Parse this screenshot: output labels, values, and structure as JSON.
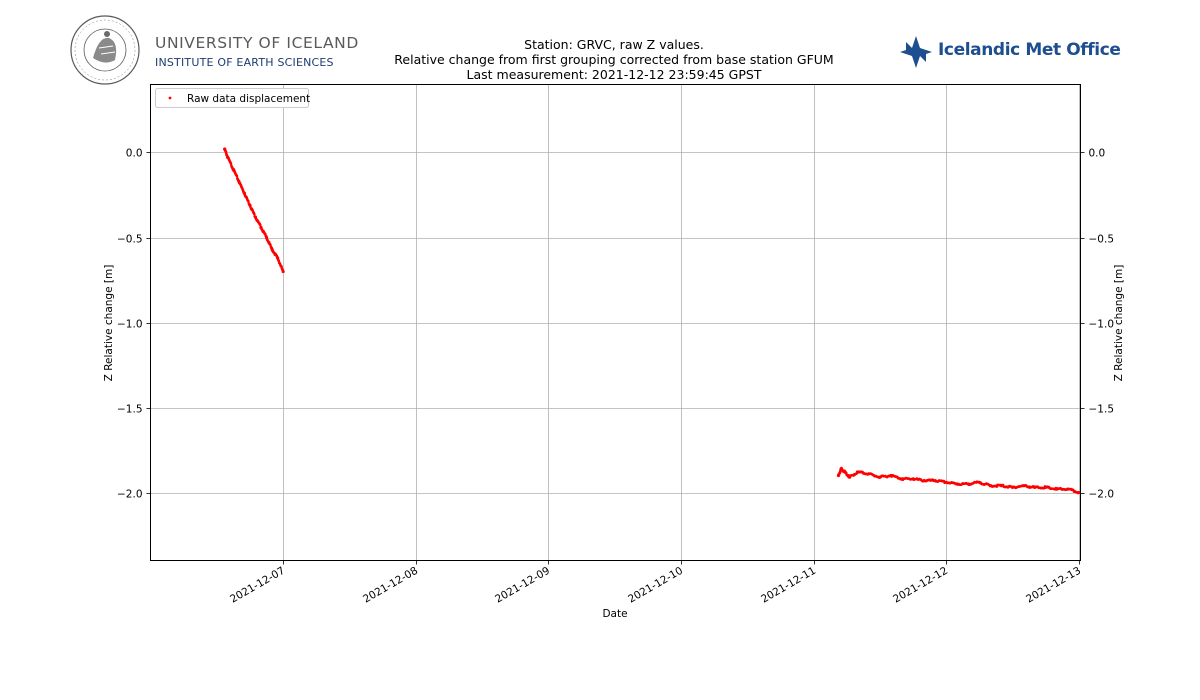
{
  "header": {
    "university_name": "UNIVERSITY OF ICELAND",
    "institute_name": "INSTITUTE OF EARTH SCIENCES",
    "seal_text": "UNIVERSITATIS ISLANDIAE SIGILLUM",
    "met_office_name": "Icelandic Met Office",
    "colors": {
      "university_text": "#5a5a5a",
      "institute_text": "#1d3c6e",
      "met_office": "#1d4e8f"
    }
  },
  "chart_data": {
    "type": "scatter",
    "title_lines": [
      "Station: GRVC, raw Z values.",
      "Relative change from first grouping corrected from base station GFUM",
      "Last measurement: 2021-12-12 23:59:45 GPST"
    ],
    "xlabel": "Date",
    "ylabel": "Z Relative change [m]",
    "ylabel_right": "Z Relative change [m]",
    "xlim": [
      "2021-12-06 00:00",
      "2021-12-13 00:18"
    ],
    "ylim": [
      -2.4,
      0.4
    ],
    "x_tick_labels": [
      "2021-12-07",
      "2021-12-08",
      "2021-12-09",
      "2021-12-10",
      "2021-12-11",
      "2021-12-12",
      "2021-12-13"
    ],
    "y_tick_labels": [
      "0.0",
      "−0.5",
      "−1.0",
      "−1.5",
      "−2.0"
    ],
    "y_ticks": [
      0.0,
      -0.5,
      -1.0,
      -1.5,
      -2.0
    ],
    "grid": true,
    "legend_position": "top-left",
    "marker_color": "#ff0000",
    "series": [
      {
        "name": "Raw data displacement",
        "x": [
          "2021-12-06 13:25",
          "2021-12-06 14:00",
          "2021-12-06 15:00",
          "2021-12-06 16:00",
          "2021-12-06 17:00",
          "2021-12-06 18:00",
          "2021-12-06 19:00",
          "2021-12-06 20:00",
          "2021-12-06 21:00",
          "2021-12-06 22:00",
          "2021-12-06 23:00",
          "2021-12-07 00:00",
          "2021-12-11 04:30",
          "2021-12-11 05:00",
          "2021-12-11 05:40",
          "2021-12-11 06:30",
          "2021-12-11 08:00",
          "2021-12-11 10:00",
          "2021-12-11 12:00",
          "2021-12-11 14:00",
          "2021-12-11 16:00",
          "2021-12-11 18:00",
          "2021-12-11 20:00",
          "2021-12-11 22:00",
          "2021-12-12 00:00",
          "2021-12-12 02:00",
          "2021-12-12 04:00",
          "2021-12-12 06:00",
          "2021-12-12 08:00",
          "2021-12-12 10:00",
          "2021-12-12 12:00",
          "2021-12-12 14:00",
          "2021-12-12 16:00",
          "2021-12-12 18:00",
          "2021-12-12 20:00",
          "2021-12-12 22:00",
          "2021-12-13 00:00"
        ],
        "y": [
          0.02,
          -0.03,
          -0.1,
          -0.17,
          -0.24,
          -0.31,
          -0.38,
          -0.44,
          -0.5,
          -0.57,
          -0.62,
          -0.7,
          -1.9,
          -1.86,
          -1.88,
          -1.91,
          -1.88,
          -1.89,
          -1.91,
          -1.9,
          -1.92,
          -1.92,
          -1.93,
          -1.93,
          -1.94,
          -1.95,
          -1.95,
          -1.94,
          -1.96,
          -1.96,
          -1.97,
          -1.96,
          -1.97,
          -1.97,
          -1.98,
          -1.98,
          -2.0
        ]
      }
    ]
  }
}
